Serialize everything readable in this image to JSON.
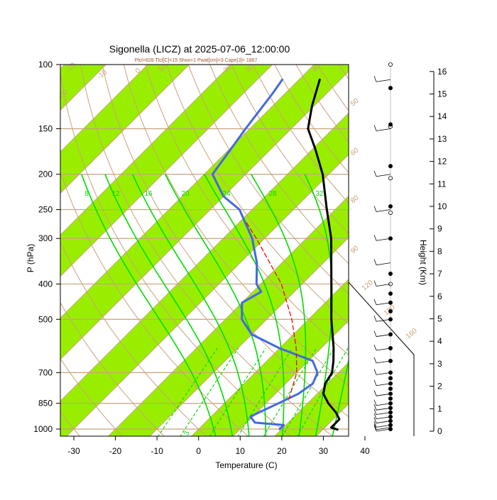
{
  "chart_data": {
    "type": "line",
    "title": "Sigonella (LICZ) at 2025-07-06_12:00:00",
    "subtitle": "Plcl=828 Tlcl[C]=15 Shox=1 Pwat[cm]=3 Cape[J]= 1867",
    "xlabel": "Temperature (C)",
    "ylabel": "P (hPa)",
    "y2label": "Height (Km)",
    "xlim": [
      -35,
      50
    ],
    "ylim": [
      1050,
      100
    ],
    "x_ticks": [
      "-30",
      "-20",
      "-10",
      "0",
      "10",
      "20",
      "30",
      "40"
    ],
    "pressure_ticks": [
      {
        "p": 100,
        "label": "100"
      },
      {
        "p": 150,
        "label": "150"
      },
      {
        "p": 200,
        "label": "200"
      },
      {
        "p": 250,
        "label": "250"
      },
      {
        "p": 300,
        "label": "300"
      },
      {
        "p": 400,
        "label": "400"
      },
      {
        "p": 500,
        "label": "500"
      },
      {
        "p": 700,
        "label": "700"
      },
      {
        "p": 850,
        "label": "850"
      },
      {
        "p": 1000,
        "label": "1000"
      }
    ],
    "height_ticks": [
      "0",
      "1",
      "2",
      "3",
      "4",
      "5",
      "6",
      "7",
      "8",
      "9",
      "10",
      "11",
      "12",
      "13",
      "14",
      "15",
      "16"
    ],
    "colors": {
      "isotherm_band": "#99ee00",
      "background_lines": "#c8a27a",
      "temperature": "#000000",
      "dewpoint": "#4169e1",
      "parcel": "#ff0000",
      "moist_adiabat": "#00dd00",
      "mixing_ratio": "#00dd00"
    },
    "dry_adiabat_labels": [
      "-30",
      "-20",
      "-10",
      "0",
      "10",
      "20",
      "30",
      "40",
      "50",
      "60",
      "80",
      "90",
      "120",
      "130",
      "160"
    ],
    "moist_adiabat_labels": [
      "8",
      "12",
      "16",
      "20",
      "24",
      "28",
      "32"
    ],
    "mixing_ratio_labels": [
      "3"
    ],
    "series": [
      {
        "role": "temperature",
        "points": [
          {
            "p": 1003,
            "t": 33.5
          },
          {
            "p": 990,
            "t": 31.5
          },
          {
            "p": 975,
            "t": 31.5
          },
          {
            "p": 940,
            "t": 31.5
          },
          {
            "p": 900,
            "t": 29.0
          },
          {
            "p": 850,
            "t": 25.0
          },
          {
            "p": 800,
            "t": 21.5
          },
          {
            "p": 750,
            "t": 19.5
          },
          {
            "p": 700,
            "t": 18.5
          },
          {
            "p": 650,
            "t": 16.0
          },
          {
            "p": 600,
            "t": 13.0
          },
          {
            "p": 500,
            "t": 5.5
          },
          {
            "p": 400,
            "t": -3.0
          },
          {
            "p": 300,
            "t": -14.0
          },
          {
            "p": 250,
            "t": -22.0
          },
          {
            "p": 200,
            "t": -31.5
          },
          {
            "p": 170,
            "t": -39.5
          },
          {
            "p": 150,
            "t": -46.0
          },
          {
            "p": 130,
            "t": -50.5
          },
          {
            "p": 110,
            "t": -55.0
          }
        ]
      },
      {
        "role": "dewpoint",
        "points": [
          {
            "p": 1000,
            "t": 19.5
          },
          {
            "p": 975,
            "t": 19.5
          },
          {
            "p": 960,
            "t": 12.0
          },
          {
            "p": 925,
            "t": 9.5
          },
          {
            "p": 900,
            "t": 10.5
          },
          {
            "p": 850,
            "t": 13.0
          },
          {
            "p": 800,
            "t": 15.5
          },
          {
            "p": 750,
            "t": 16.5
          },
          {
            "p": 700,
            "t": 15.0
          },
          {
            "p": 650,
            "t": 11.0
          },
          {
            "p": 600,
            "t": 0.0
          },
          {
            "p": 550,
            "t": -10.0
          },
          {
            "p": 500,
            "t": -16.0
          },
          {
            "p": 450,
            "t": -20.0
          },
          {
            "p": 420,
            "t": -18.0
          },
          {
            "p": 400,
            "t": -21.0
          },
          {
            "p": 350,
            "t": -26.0
          },
          {
            "p": 300,
            "t": -33.0
          },
          {
            "p": 250,
            "t": -43.0
          },
          {
            "p": 230,
            "t": -50.0
          },
          {
            "p": 200,
            "t": -58.0
          },
          {
            "p": 150,
            "t": -61.0
          },
          {
            "p": 120,
            "t": -63.0
          },
          {
            "p": 110,
            "t": -64.0
          }
        ]
      },
      {
        "role": "parcel",
        "points": [
          {
            "p": 828,
            "t": 14.5
          },
          {
            "p": 700,
            "t": 10.0
          },
          {
            "p": 600,
            "t": 4.0
          },
          {
            "p": 500,
            "t": -4.0
          },
          {
            "p": 400,
            "t": -15.0
          },
          {
            "p": 300,
            "t": -32.0
          },
          {
            "p": 270,
            "t": -38.5
          }
        ]
      }
    ],
    "height_dots": [
      {
        "p": 1000,
        "filled": true
      },
      {
        "p": 975,
        "filled": true
      },
      {
        "p": 950,
        "filled": true
      },
      {
        "p": 925,
        "filled": true
      },
      {
        "p": 900,
        "filled": true
      },
      {
        "p": 875,
        "filled": true
      },
      {
        "p": 850,
        "filled": true
      },
      {
        "p": 825,
        "filled": true
      },
      {
        "p": 800,
        "filled": true
      },
      {
        "p": 775,
        "filled": true
      },
      {
        "p": 750,
        "filled": true
      },
      {
        "p": 725,
        "filled": true
      },
      {
        "p": 700,
        "filled": true
      },
      {
        "p": 650,
        "filled": true
      },
      {
        "p": 600,
        "filled": true
      },
      {
        "p": 550,
        "filled": true
      },
      {
        "p": 500,
        "filled": true
      },
      {
        "p": 475,
        "filled": true
      },
      {
        "p": 450,
        "filled": true
      },
      {
        "p": 425,
        "filled": true
      },
      {
        "p": 400,
        "filled": false
      },
      {
        "p": 375,
        "filled": true
      },
      {
        "p": 300,
        "filled": true
      },
      {
        "p": 255,
        "filled": false
      },
      {
        "p": 245,
        "filled": true
      },
      {
        "p": 205,
        "filled": false
      },
      {
        "p": 190,
        "filled": true
      },
      {
        "p": 148,
        "filled": false
      },
      {
        "p": 146,
        "filled": true
      },
      {
        "p": 116,
        "filled": true
      },
      {
        "p": 100,
        "filled": false
      }
    ],
    "wind_barbs_p": [
      1000,
      990,
      975,
      950,
      925,
      900,
      875,
      850,
      800,
      750,
      700,
      650,
      600,
      550,
      500,
      450,
      400,
      350,
      300,
      250,
      200,
      150,
      110
    ]
  }
}
